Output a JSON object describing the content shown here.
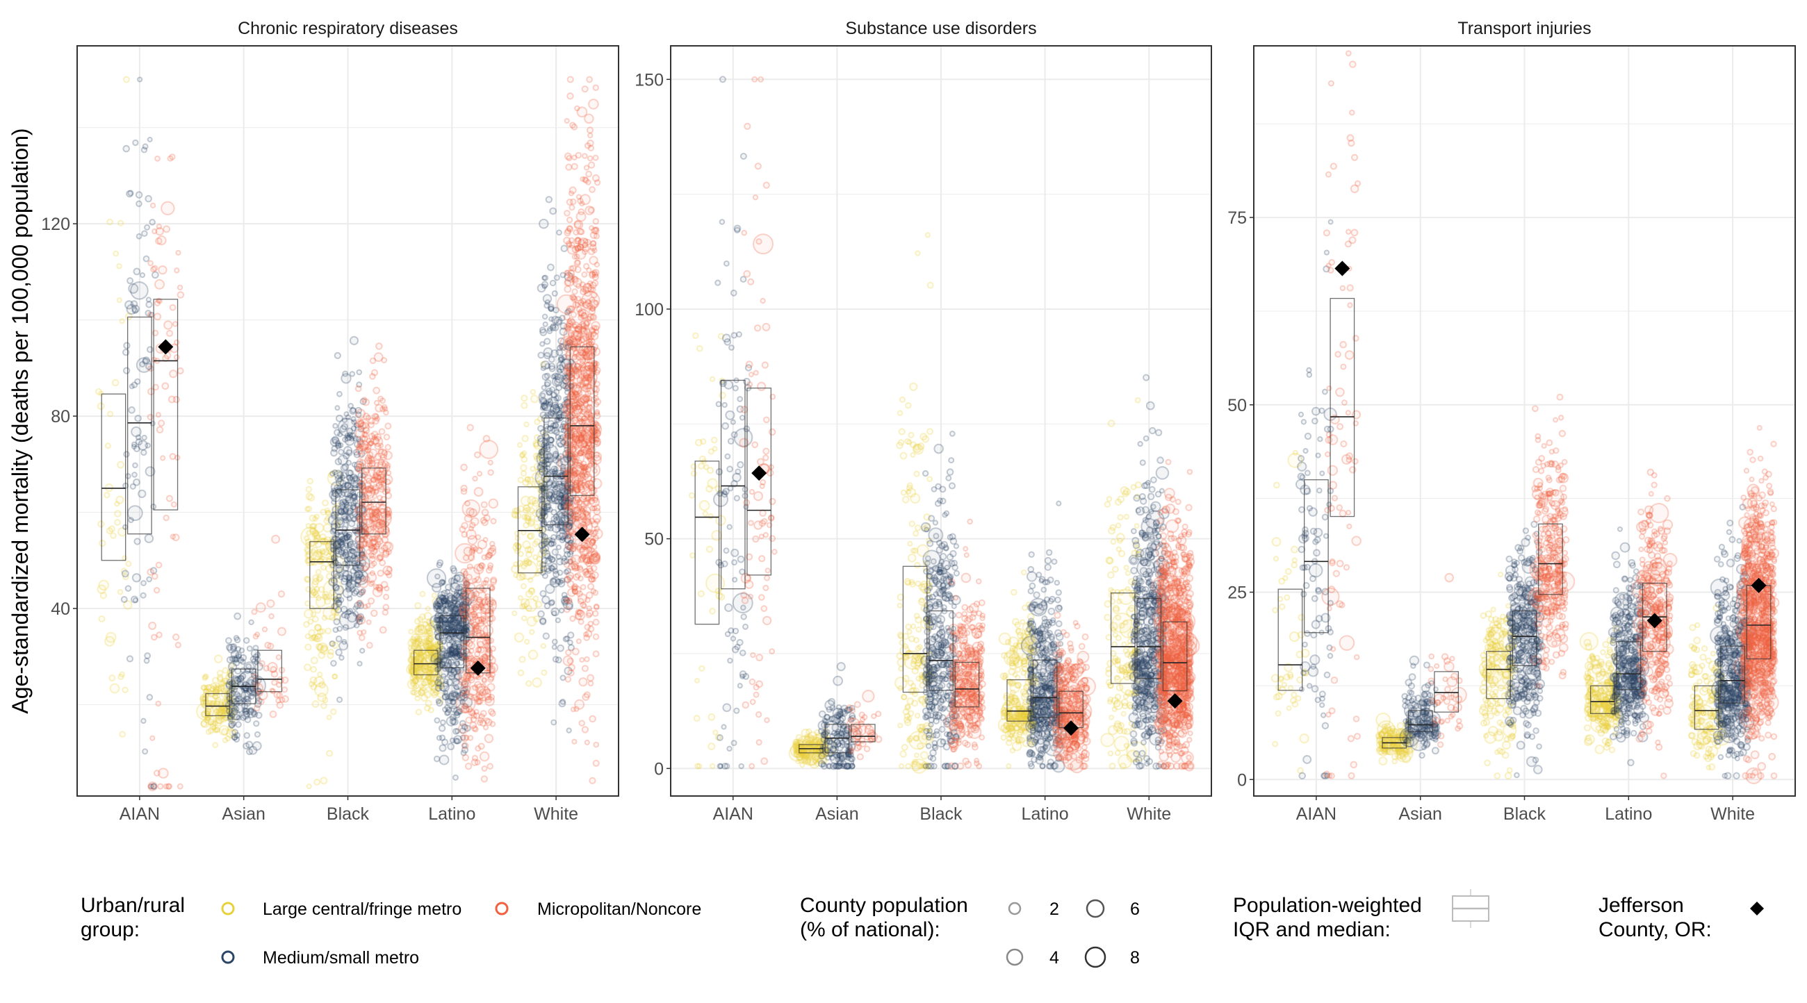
{
  "chart_data": [
    {
      "type": "box+scatter",
      "title": "Chronic respiratory diseases",
      "categories": [
        "AIAN",
        "Asian",
        "Black",
        "Latino",
        "White"
      ],
      "ylim": [
        1,
        157
      ],
      "yticks": [
        40,
        80,
        120
      ],
      "ytick_labels": [
        "40",
        "80",
        "120"
      ],
      "value_cap": 150,
      "grid": true,
      "series": [
        {
          "name": "Large central/fringe metro",
          "q1": [
            50,
            17.7,
            40,
            26.2,
            47.4
          ],
          "median": [
            65,
            19.7,
            49.7,
            28.5,
            56.2
          ],
          "q3": [
            84.6,
            22.3,
            53.9,
            31.3,
            65.3
          ]
        },
        {
          "name": "Medium/small metro",
          "q1": [
            55.5,
            20.2,
            49,
            27.7,
            57.4
          ],
          "median": [
            78.6,
            23.8,
            56.3,
            34.9,
            67.5
          ],
          "q3": [
            100.6,
            27.4,
            64.7,
            38.5,
            79.6
          ]
        },
        {
          "name": "Micropolitan/Noncore",
          "q1": [
            60.5,
            22.7,
            55.5,
            26.6,
            63.5
          ],
          "median": [
            91.5,
            25.3,
            62.1,
            34,
            78
          ],
          "q3": [
            104.3,
            31.3,
            69.2,
            44.2,
            94.4
          ]
        }
      ],
      "jefferson": [
        94.4,
        null,
        null,
        27.6,
        55.4
      ]
    },
    {
      "type": "box+scatter",
      "title": "Substance use disorders",
      "categories": [
        "AIAN",
        "Asian",
        "Black",
        "Latino",
        "White"
      ],
      "ylim": [
        -6,
        157.3
      ],
      "yticks": [
        0,
        50,
        100,
        150
      ],
      "ytick_labels": [
        "0",
        "50",
        "100",
        "150"
      ],
      "value_cap": 150,
      "grid": true,
      "series": [
        {
          "name": "Large central/fringe metro",
          "q1": [
            31.4,
            3.4,
            16.6,
            10.3,
            18.5
          ],
          "median": [
            54.7,
            4.3,
            25,
            12.5,
            26.5
          ],
          "q3": [
            66.9,
            5.2,
            44,
            19.3,
            38.2
          ]
        },
        {
          "name": "Medium/small metro",
          "q1": [
            39.1,
            3.4,
            17,
            11.1,
            19.6
          ],
          "median": [
            61.5,
            6.6,
            23.5,
            15.4,
            26.5
          ],
          "q3": [
            84.5,
            9.6,
            34.3,
            23.6,
            37
          ]
        },
        {
          "name": "Micropolitan/Noncore",
          "q1": [
            42.1,
            5.8,
            13.4,
            8.9,
            16.9
          ],
          "median": [
            56.2,
            7,
            17.3,
            12.1,
            23
          ],
          "q3": [
            82.8,
            9.6,
            23.1,
            16.8,
            31.9
          ]
        }
      ],
      "jefferson": [
        64.3,
        null,
        null,
        8.8,
        14.7
      ]
    },
    {
      "type": "box+scatter",
      "title": "Transport injuries",
      "categories": [
        "AIAN",
        "Asian",
        "Black",
        "Latino",
        "White"
      ],
      "ylim": [
        -2.2,
        97.9
      ],
      "yticks": [
        0,
        25,
        50,
        75
      ],
      "ytick_labels": [
        "0",
        "25",
        "50",
        "75"
      ],
      "value_cap": null,
      "grid": true,
      "series": [
        {
          "name": "Large central/fringe metro",
          "q1": [
            11.9,
            4.2,
            10.8,
            8.8,
            6.7
          ],
          "median": [
            15.3,
            4.9,
            14.7,
            10.4,
            9.2
          ],
          "q3": [
            25.4,
            5.6,
            17.1,
            12.5,
            12.5
          ]
        },
        {
          "name": "Medium/small metro",
          "q1": [
            19.6,
            6.4,
            15.2,
            12,
            10.2
          ],
          "median": [
            29.1,
            7.3,
            19.1,
            14.1,
            13.2
          ],
          "q3": [
            40,
            9.2,
            22.5,
            18.4,
            17.8
          ]
        },
        {
          "name": "Micropolitan/Noncore",
          "q1": [
            35.1,
            9,
            24.7,
            17.1,
            16.1
          ],
          "median": [
            48.4,
            11.6,
            28.8,
            21.7,
            20.6
          ],
          "q3": [
            64.2,
            14.4,
            34.1,
            26.2,
            25.9
          ]
        }
      ],
      "jefferson": [
        68.2,
        null,
        null,
        21.2,
        25.9
      ]
    }
  ],
  "ylabel": "Age-standardized mortality (deaths per 100,000 population)",
  "colors": {
    "Large central/fringe metro": "#E8D13A",
    "Medium/small metro": "#2B4565",
    "Micropolitan/Noncore": "#F2603F",
    "jefferson": "#000000",
    "grid": "#EBEBEB",
    "frame": "#333333"
  },
  "legend": {
    "placement": "bottom",
    "urban": {
      "title_lines": [
        "Urban/rural",
        "group:"
      ],
      "items": [
        "Large central/fringe metro",
        "Micropolitan/Noncore",
        "Medium/small metro"
      ]
    },
    "size": {
      "title_lines": [
        "County population",
        "(% of national):"
      ],
      "items": [
        "2",
        "6",
        "4",
        "8"
      ]
    },
    "iqr": {
      "title_lines": [
        "Population-weighted",
        "IQR and median:"
      ]
    },
    "jefferson": {
      "title_lines": [
        "Jefferson",
        "County, OR:"
      ],
      "icon": "diamond"
    }
  }
}
